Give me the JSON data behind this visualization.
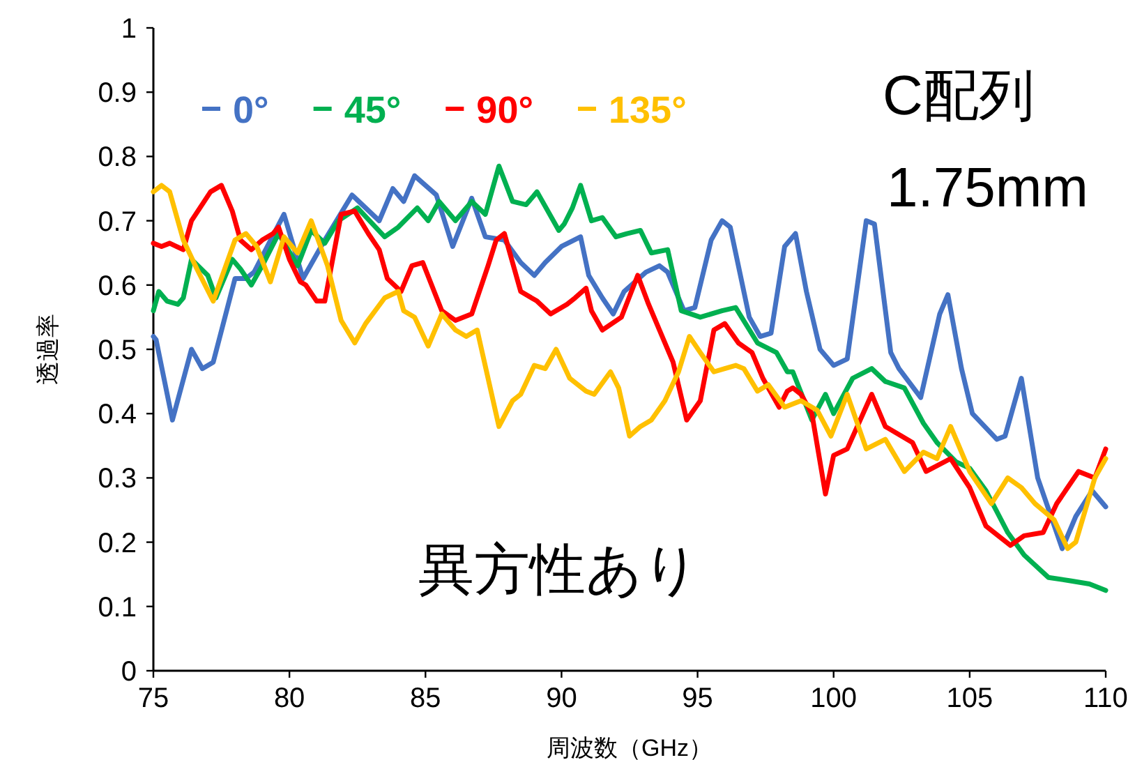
{
  "chart_data": {
    "type": "line",
    "xlabel": "周波数（GHz）",
    "ylabel": "透過率",
    "xlim": [
      75,
      110
    ],
    "xticks": [
      75,
      80,
      85,
      90,
      95,
      100,
      105,
      110
    ],
    "ylim": [
      0,
      1
    ],
    "yticks": [
      0,
      0.1,
      0.2,
      0.3,
      0.4,
      0.5,
      0.6,
      0.7,
      0.8,
      0.9,
      1
    ],
    "legend": "top left",
    "grid": false,
    "line_style": "solid",
    "annotations": [
      "C配列",
      "1.75mm",
      "異方性あり"
    ],
    "series": [
      {
        "name": "0°",
        "color": "#4472c4",
        "x": [
          75.0,
          75.1,
          75.7,
          76.4,
          76.8,
          77.2,
          78.0,
          78.4,
          78.7,
          79.8,
          80.5,
          81.3,
          82.3,
          83.3,
          83.8,
          84.2,
          84.6,
          85.4,
          86.0,
          86.7,
          87.2,
          87.9,
          88.5,
          89.0,
          89.4,
          90.0,
          90.7,
          91.0,
          91.5,
          91.9,
          92.3,
          93.1,
          93.6,
          93.9,
          94.5,
          94.9,
          95.5,
          95.9,
          96.2,
          96.9,
          97.3,
          97.7,
          98.2,
          98.6,
          99.0,
          99.5,
          100.0,
          100.5,
          101.2,
          101.5,
          102.1,
          102.4,
          103.2,
          103.9,
          104.2,
          104.7,
          105.1,
          106.0,
          106.3,
          106.9,
          107.5,
          108.4,
          108.9,
          109.5,
          110.0
        ],
        "values": [
          0.52,
          0.515,
          0.39,
          0.5,
          0.47,
          0.48,
          0.61,
          0.61,
          0.62,
          0.71,
          0.61,
          0.67,
          0.74,
          0.7,
          0.75,
          0.73,
          0.77,
          0.74,
          0.66,
          0.735,
          0.675,
          0.67,
          0.635,
          0.615,
          0.635,
          0.66,
          0.675,
          0.615,
          0.58,
          0.555,
          0.59,
          0.62,
          0.63,
          0.62,
          0.56,
          0.565,
          0.67,
          0.7,
          0.69,
          0.55,
          0.52,
          0.525,
          0.66,
          0.68,
          0.59,
          0.5,
          0.475,
          0.485,
          0.7,
          0.695,
          0.495,
          0.47,
          0.425,
          0.555,
          0.585,
          0.47,
          0.4,
          0.36,
          0.365,
          0.455,
          0.3,
          0.19,
          0.24,
          0.28,
          0.255
        ]
      },
      {
        "name": "45°",
        "color": "#00b050",
        "x": [
          75.0,
          75.2,
          75.5,
          75.9,
          76.1,
          76.4,
          77.0,
          77.3,
          77.9,
          78.2,
          78.6,
          79.0,
          79.6,
          80.3,
          80.8,
          81.3,
          81.8,
          82.5,
          83.5,
          84.0,
          84.7,
          85.1,
          85.5,
          86.1,
          86.7,
          87.2,
          87.7,
          88.2,
          88.7,
          89.1,
          89.9,
          90.1,
          90.4,
          90.7,
          91.1,
          91.5,
          92.0,
          92.4,
          92.9,
          93.3,
          93.9,
          94.4,
          95.1,
          95.9,
          96.4,
          97.2,
          97.9,
          98.3,
          98.5,
          99.2,
          99.7,
          100.0,
          100.7,
          101.4,
          101.9,
          102.6,
          103.3,
          103.8,
          104.5,
          105.0,
          105.6,
          106.4,
          107.0,
          107.9,
          108.7,
          109.4,
          110.0
        ],
        "values": [
          0.56,
          0.59,
          0.575,
          0.57,
          0.58,
          0.64,
          0.615,
          0.58,
          0.64,
          0.625,
          0.6,
          0.63,
          0.68,
          0.63,
          0.685,
          0.665,
          0.7,
          0.72,
          0.675,
          0.69,
          0.72,
          0.7,
          0.73,
          0.7,
          0.73,
          0.71,
          0.785,
          0.73,
          0.725,
          0.745,
          0.685,
          0.695,
          0.72,
          0.755,
          0.7,
          0.705,
          0.675,
          0.68,
          0.685,
          0.65,
          0.655,
          0.56,
          0.55,
          0.56,
          0.565,
          0.51,
          0.495,
          0.465,
          0.465,
          0.39,
          0.43,
          0.4,
          0.455,
          0.47,
          0.45,
          0.44,
          0.385,
          0.355,
          0.325,
          0.315,
          0.28,
          0.215,
          0.18,
          0.145,
          0.14,
          0.135,
          0.125
        ]
      },
      {
        "name": "90°",
        "color": "#ff0000",
        "x": [
          75.0,
          75.3,
          75.6,
          76.1,
          76.4,
          77.1,
          77.5,
          77.9,
          78.2,
          78.6,
          79.0,
          79.4,
          79.6,
          80.0,
          80.4,
          80.6,
          81.0,
          81.3,
          81.9,
          82.4,
          82.9,
          83.3,
          83.6,
          84.1,
          84.5,
          84.9,
          85.6,
          86.1,
          86.7,
          87.3,
          87.6,
          87.9,
          88.5,
          89.1,
          89.6,
          90.2,
          90.5,
          90.9,
          91.1,
          91.5,
          92.2,
          92.8,
          93.2,
          93.6,
          94.1,
          94.6,
          95.1,
          95.6,
          96.0,
          96.5,
          97.0,
          97.4,
          98.0,
          98.3,
          98.5,
          98.8,
          99.2,
          99.7,
          100.0,
          100.5,
          101.4,
          101.9,
          102.5,
          102.9,
          103.4,
          104.3,
          105.0,
          105.6,
          106.5,
          107.0,
          107.7,
          108.2,
          109.0,
          109.6,
          110.0
        ],
        "values": [
          0.665,
          0.66,
          0.665,
          0.655,
          0.7,
          0.745,
          0.755,
          0.715,
          0.67,
          0.655,
          0.67,
          0.68,
          0.69,
          0.64,
          0.605,
          0.6,
          0.575,
          0.575,
          0.71,
          0.715,
          0.68,
          0.655,
          0.61,
          0.59,
          0.63,
          0.635,
          0.56,
          0.545,
          0.555,
          0.63,
          0.67,
          0.68,
          0.59,
          0.575,
          0.555,
          0.57,
          0.58,
          0.595,
          0.56,
          0.53,
          0.55,
          0.615,
          0.57,
          0.53,
          0.48,
          0.39,
          0.42,
          0.53,
          0.54,
          0.51,
          0.495,
          0.455,
          0.41,
          0.435,
          0.44,
          0.43,
          0.4,
          0.275,
          0.335,
          0.345,
          0.43,
          0.38,
          0.365,
          0.355,
          0.31,
          0.33,
          0.285,
          0.225,
          0.195,
          0.21,
          0.215,
          0.26,
          0.31,
          0.3,
          0.345
        ]
      },
      {
        "name": "135°",
        "color": "#ffc000",
        "x": [
          75.0,
          75.3,
          75.6,
          76.1,
          76.6,
          77.2,
          78.0,
          78.4,
          78.8,
          79.3,
          79.8,
          80.3,
          80.8,
          81.4,
          81.9,
          82.4,
          82.8,
          83.5,
          84.0,
          84.2,
          84.6,
          85.1,
          85.6,
          86.1,
          86.5,
          86.9,
          87.7,
          88.2,
          88.5,
          89.0,
          89.4,
          89.8,
          90.3,
          90.9,
          91.2,
          91.8,
          92.1,
          92.5,
          92.9,
          93.3,
          93.8,
          94.3,
          94.7,
          95.1,
          95.6,
          96.0,
          96.4,
          96.7,
          97.2,
          97.6,
          98.2,
          98.8,
          99.4,
          99.9,
          100.5,
          101.2,
          101.9,
          102.6,
          103.3,
          103.8,
          104.3,
          105.0,
          105.8,
          106.4,
          106.9,
          107.4,
          108.1,
          108.6,
          108.9,
          109.6,
          110.0
        ],
        "values": [
          0.745,
          0.755,
          0.745,
          0.67,
          0.625,
          0.575,
          0.67,
          0.68,
          0.66,
          0.605,
          0.675,
          0.65,
          0.7,
          0.63,
          0.545,
          0.51,
          0.54,
          0.58,
          0.59,
          0.56,
          0.55,
          0.505,
          0.555,
          0.53,
          0.52,
          0.53,
          0.38,
          0.42,
          0.43,
          0.475,
          0.47,
          0.5,
          0.455,
          0.435,
          0.43,
          0.465,
          0.44,
          0.365,
          0.38,
          0.39,
          0.42,
          0.465,
          0.52,
          0.495,
          0.465,
          0.47,
          0.475,
          0.47,
          0.435,
          0.445,
          0.41,
          0.42,
          0.405,
          0.365,
          0.43,
          0.345,
          0.36,
          0.31,
          0.34,
          0.33,
          0.38,
          0.31,
          0.26,
          0.3,
          0.285,
          0.26,
          0.235,
          0.19,
          0.2,
          0.3,
          0.33
        ]
      }
    ]
  }
}
